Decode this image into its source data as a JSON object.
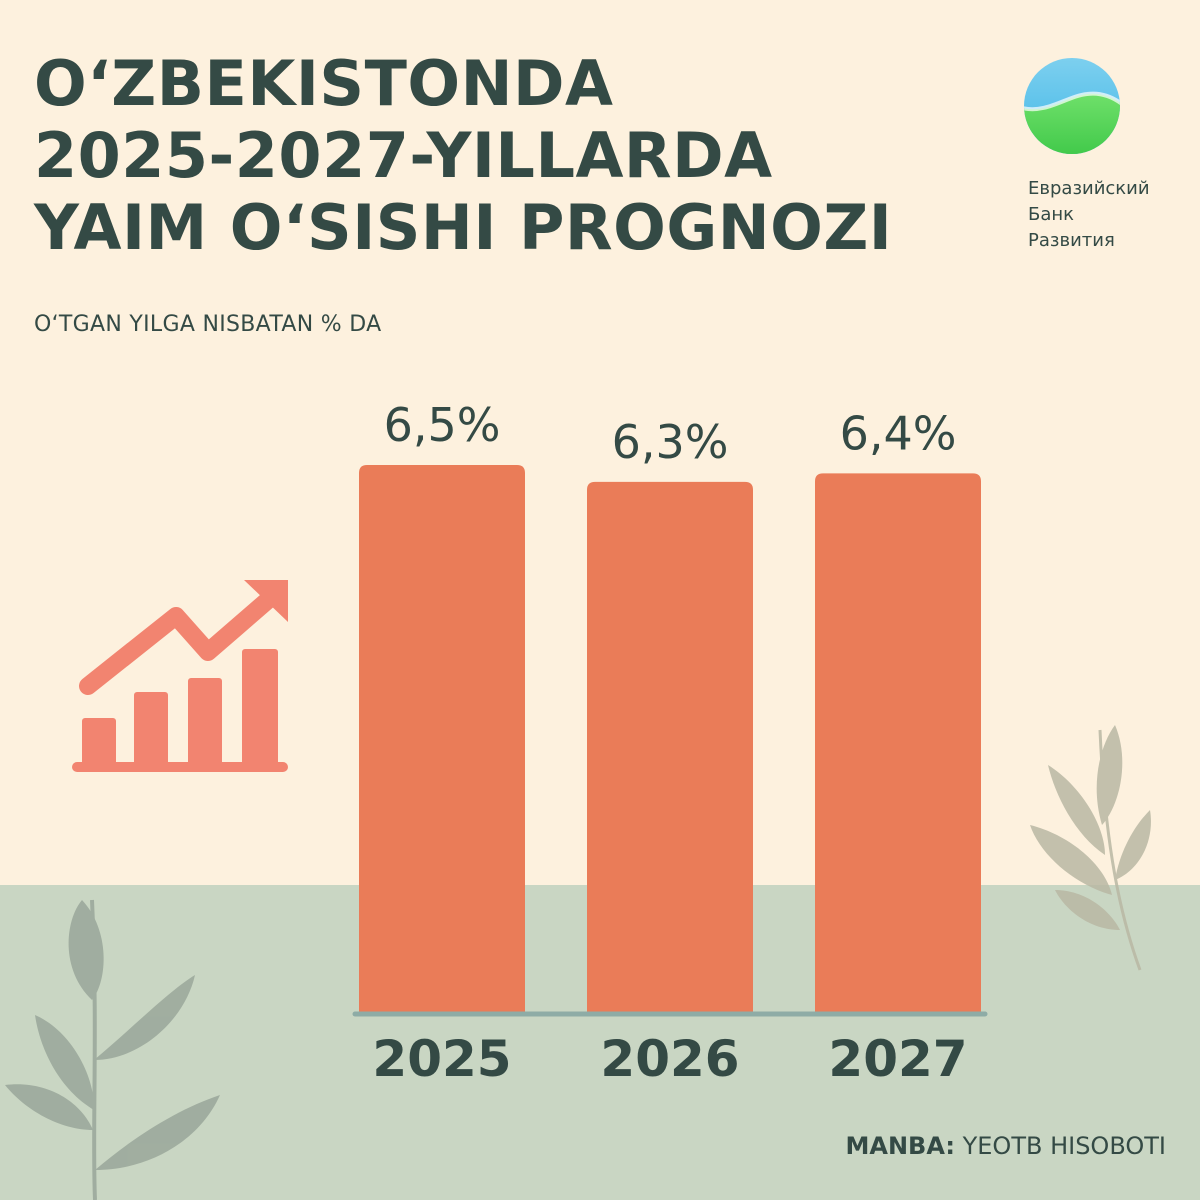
{
  "header": {
    "title_lines": [
      "O‘ZBEKISTONDA",
      "2025-2027-YILLARDA",
      "YAIM O‘SISHI PROGNOZI"
    ],
    "subtitle": "O‘TGAN YILGA NISBATAN % DA"
  },
  "logo": {
    "lines": [
      "Евразийский",
      "Банк",
      "Развития"
    ]
  },
  "footer": {
    "source_label": "MANBA:",
    "source_value": " YEOTB HISOBOTI"
  },
  "colors": {
    "bar": "#ea7c58",
    "icon": "#f28470",
    "text": "#344a45",
    "baseline": "#8eaca6"
  },
  "icons": [
    "growth-chart-icon",
    "leaf-branch-icon",
    "logo-mark-icon"
  ],
  "chart_data": {
    "type": "bar",
    "categories": [
      "2025",
      "2026",
      "2027"
    ],
    "values": [
      6.5,
      6.3,
      6.4
    ],
    "value_labels": [
      "6,5%",
      "6,3%",
      "6,4%"
    ],
    "title": "O‘ZBEKISTONDA 2025-2027-YILLARDA YAIM O‘SISHI PROGNOZI",
    "ylabel": "O‘TGAN YILGA NISBATAN % DA",
    "ylim": [
      0,
      6.5
    ],
    "grid": false,
    "legend": "none"
  }
}
